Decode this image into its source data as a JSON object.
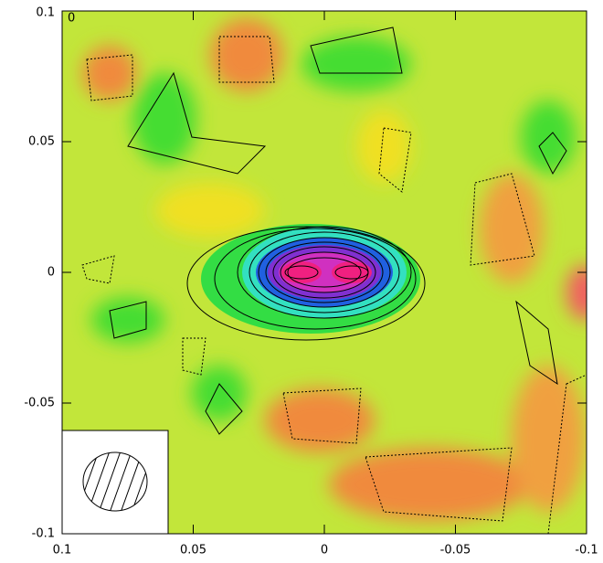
{
  "chart_data": {
    "type": "image",
    "label": "0",
    "xlim": [
      0.1,
      -0.1
    ],
    "xticks": [
      0.1,
      0.05,
      0,
      -0.05,
      -0.1
    ],
    "ylim": [
      -0.1,
      0.1
    ],
    "yticks": [
      -0.1,
      -0.05,
      0,
      0.05,
      0.1
    ]
  }
}
